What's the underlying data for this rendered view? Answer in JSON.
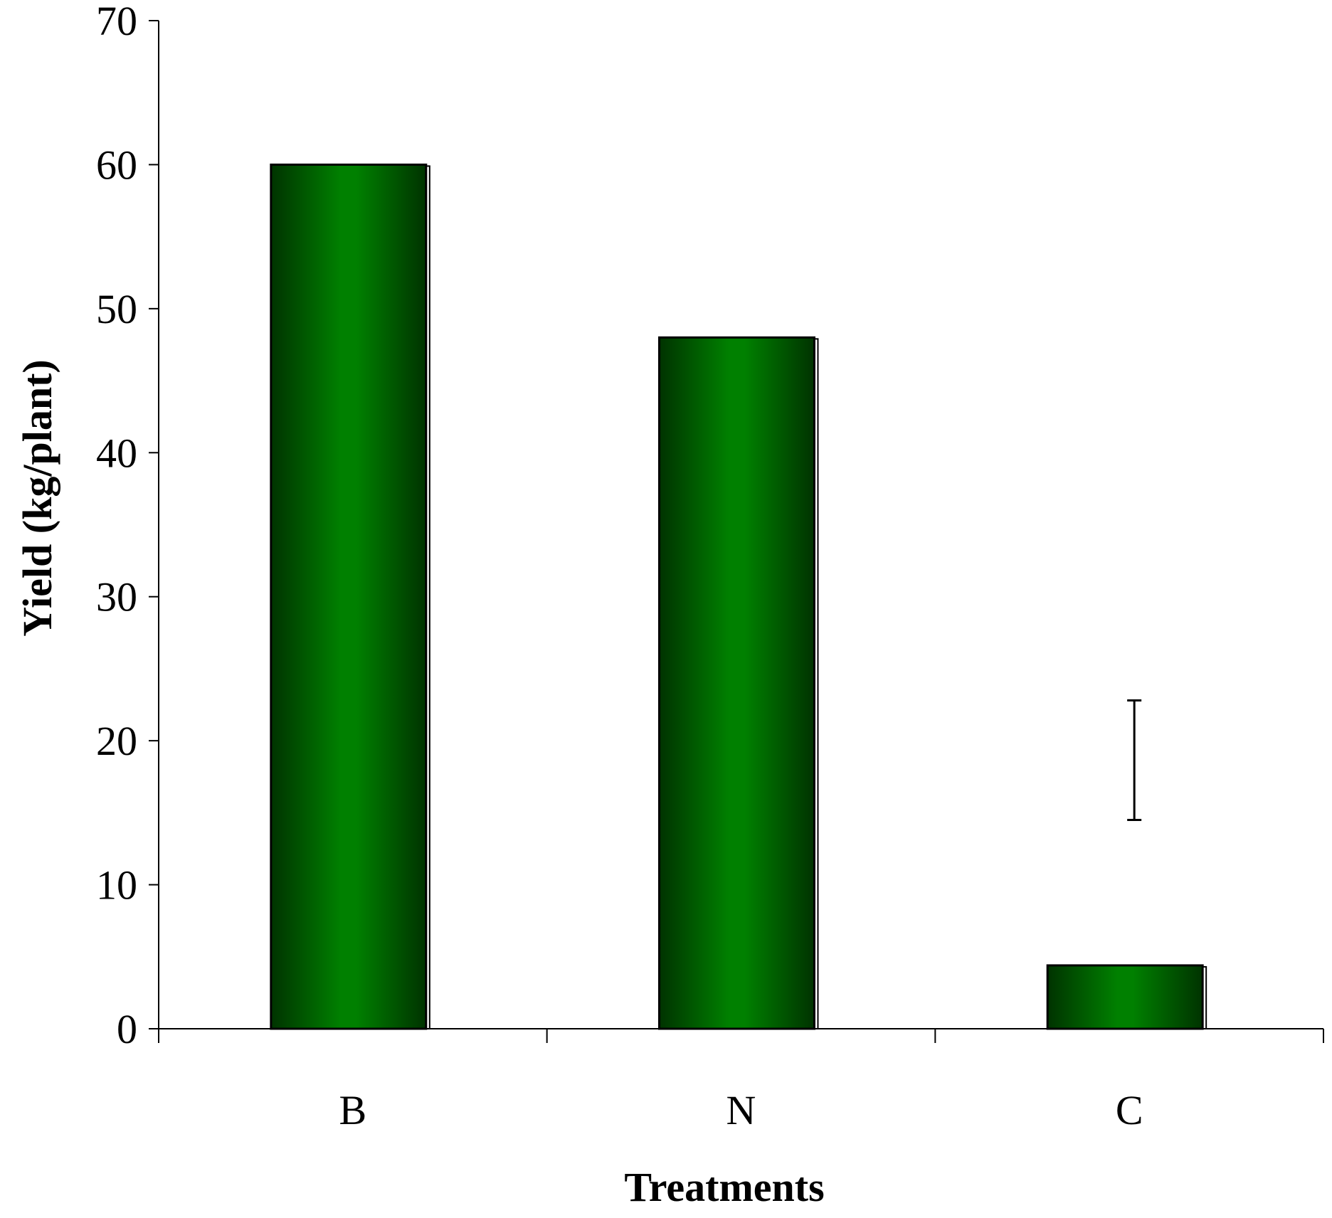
{
  "chart_data": {
    "type": "bar",
    "categories": [
      "B",
      "N",
      "C"
    ],
    "values": [
      60,
      48,
      4.4
    ],
    "error_bar": {
      "low": 14.5,
      "high": 22.8
    },
    "title": "",
    "xlabel": "Treatments",
    "ylabel": "Yield (kg/plant)",
    "ylim": [
      0,
      70
    ],
    "yticks": [
      "0",
      "10",
      "20",
      "30",
      "40",
      "50",
      "60",
      "70"
    ],
    "grid": false,
    "legend": "none",
    "colors": {
      "bar_center": "#008000",
      "bar_edge": "#003300",
      "axis": "#000000"
    }
  }
}
